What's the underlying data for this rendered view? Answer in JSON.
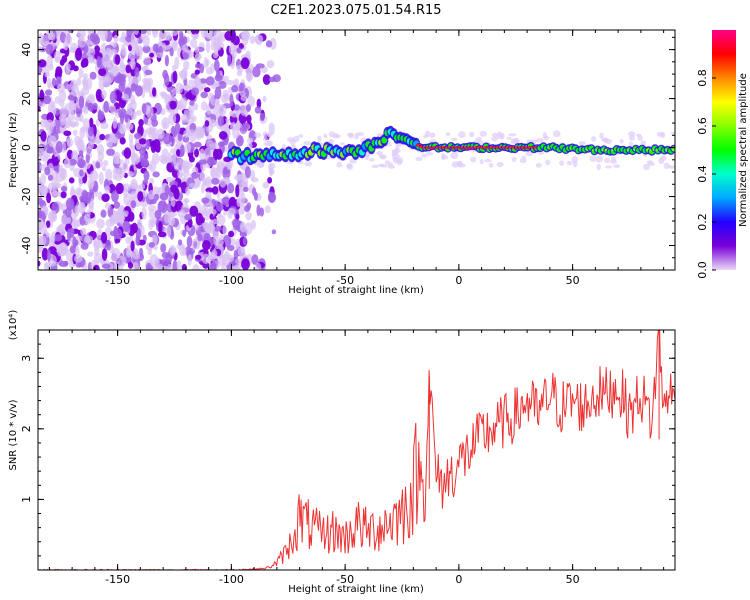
{
  "chart_data": [
    {
      "type": "heatmap",
      "title": "C2E1.2023.075.01.54.R15",
      "xlabel": "Height of straight line (km)",
      "ylabel": "Frequency (Hz)",
      "xlim": [
        -185,
        95
      ],
      "ylim": [
        -50,
        48
      ],
      "xticks": [
        -150,
        -100,
        -50,
        0,
        50
      ],
      "yticks": [
        -40,
        -20,
        0,
        20,
        40
      ],
      "ridge": {
        "x": [
          -100,
          -90,
          -80,
          -70,
          -60,
          -50,
          -40,
          -35,
          -30,
          -25,
          -20,
          -15,
          0,
          20,
          40,
          60,
          80,
          95
        ],
        "freq": [
          -3,
          -4,
          -3,
          -2,
          -1,
          -2,
          0,
          3,
          6,
          5,
          2,
          0,
          0,
          0,
          0,
          -1,
          -1,
          -1
        ]
      },
      "colorbar": {
        "label": "Normalized spectral amplitude",
        "range": [
          0,
          1
        ],
        "ticks": [
          "0.0",
          "0.2",
          "0.4",
          "0.6",
          "0.8"
        ],
        "colors": [
          "#e8d8f8",
          "#7a00d8",
          "#2200ff",
          "#00a8ff",
          "#00ffcc",
          "#00ff00",
          "#88ff00",
          "#ffff00",
          "#ff8800",
          "#ff0000",
          "#ff0088"
        ]
      }
    },
    {
      "type": "line",
      "xlabel": "Height of straight line (km)",
      "ylabel": "SNR (10 * v/v)",
      "yscale_label": "(x10⁴)",
      "xlim": [
        -185,
        95
      ],
      "ylim": [
        0,
        3.4
      ],
      "xticks": [
        -150,
        -100,
        -50,
        0,
        50
      ],
      "yticks": [
        1,
        2,
        3
      ],
      "color": "#ee3333",
      "series": [
        {
          "name": "SNR",
          "x": [
            -185,
            -150,
            -100,
            -85,
            -80,
            -75,
            -72,
            -70,
            -65,
            -60,
            -55,
            -50,
            -45,
            -40,
            -35,
            -30,
            -25,
            -20,
            -18,
            -15,
            -13,
            -10,
            -8,
            -5,
            0,
            5,
            10,
            15,
            20,
            25,
            30,
            35,
            40,
            45,
            50,
            55,
            60,
            65,
            70,
            75,
            80,
            85,
            88,
            90,
            92,
            95
          ],
          "values": [
            0.0,
            0.0,
            0.0,
            0.02,
            0.1,
            0.3,
            0.55,
            0.75,
            0.6,
            0.5,
            0.55,
            0.45,
            0.65,
            0.55,
            0.6,
            0.7,
            0.8,
            1.1,
            1.6,
            1.0,
            2.75,
            1.35,
            1.2,
            1.3,
            1.5,
            1.7,
            1.9,
            2.0,
            2.1,
            2.2,
            2.4,
            2.2,
            2.5,
            2.3,
            2.4,
            2.3,
            2.5,
            2.5,
            2.6,
            2.2,
            2.5,
            2.1,
            3.45,
            2.2,
            2.6,
            2.3
          ]
        }
      ]
    }
  ]
}
